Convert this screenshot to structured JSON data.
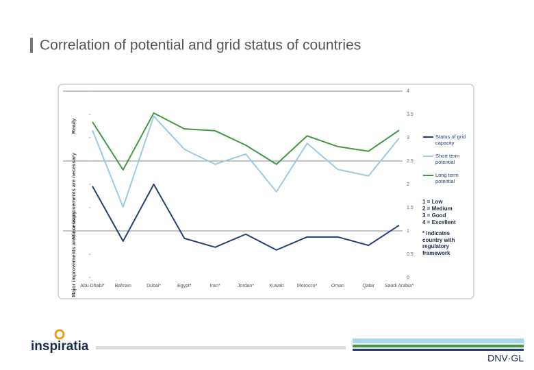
{
  "title": "Correlation of potential and grid status of countries",
  "logos": {
    "left": "inspiratia",
    "right": "DNV·GL"
  },
  "chart_data": {
    "type": "line",
    "categories": [
      "Abu Dhabi*",
      "Bahrain",
      "Dubai*",
      "Egypt*",
      "Iran*",
      "Jordan*",
      "Kuwait",
      "Morocco*",
      "Oman",
      "Qatar",
      "Saudi Arabia*"
    ],
    "series": [
      {
        "name": "Status of grid capacity",
        "color": "#1f3f7a",
        "values": [
          1.96,
          0.78,
          2.0,
          0.84,
          0.65,
          0.93,
          0.59,
          0.87,
          0.87,
          0.69,
          1.12
        ]
      },
      {
        "name": "Short term potential",
        "color": "#9cc9e4",
        "values": [
          3.16,
          1.51,
          3.46,
          2.75,
          2.43,
          2.65,
          1.84,
          2.88,
          2.32,
          2.18,
          2.99
        ]
      },
      {
        "name": "Long term potential",
        "color": "#3f9a3f",
        "values": [
          3.34,
          2.31,
          3.53,
          3.19,
          3.15,
          2.84,
          2.43,
          3.04,
          2.81,
          2.71,
          3.16
        ]
      }
    ],
    "ylim": [
      0,
      4
    ],
    "yticks": [
      0,
      0.5,
      1,
      1.5,
      2,
      2.5,
      3,
      3.5,
      4
    ],
    "zones": [
      {
        "label": "Major improvements are necessary",
        "from": 0,
        "to": 1
      },
      {
        "label": "Minor improvements are necessary",
        "from": 1,
        "to": 2.5
      },
      {
        "label": "Ready",
        "from": 2.5,
        "to": 4
      }
    ],
    "notes": [
      "1 = Low",
      "2 = Medium",
      "3 = Good",
      "4 = Excellent",
      "* indicates country with regulatory framework"
    ]
  }
}
